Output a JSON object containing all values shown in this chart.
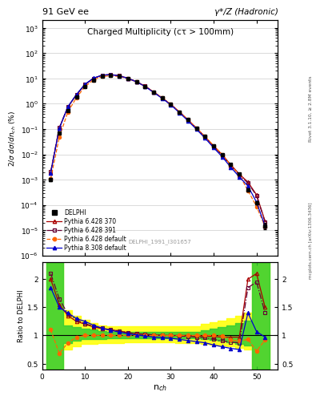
{
  "title_top": "91 GeV ee",
  "title_right": "γ*/Z (Hadronic)",
  "plot_title": "Charged Multiplicity",
  "plot_subtitle": "(cτ > 100mm)",
  "ylabel_main": "2/σ dσ/dn$_{ch}$ (%)",
  "ylabel_ratio": "Ratio to DELPHI",
  "xlabel": "n$_{ch}$",
  "watermark": "DELPHI_1991_I301657",
  "right_label1": "Rivet 3.1.10, ≥ 2.8M events",
  "right_label2": "mcplots.cern.ch [arXiv:1306.3436]",
  "nch": [
    2,
    4,
    6,
    8,
    10,
    12,
    14,
    16,
    18,
    20,
    22,
    24,
    26,
    28,
    30,
    32,
    34,
    36,
    38,
    40,
    42,
    44,
    46,
    48,
    50,
    52
  ],
  "delphi_y": [
    0.001,
    0.07,
    0.55,
    1.8,
    4.8,
    8.8,
    12.0,
    13.0,
    12.0,
    9.8,
    7.3,
    4.9,
    2.9,
    1.7,
    0.95,
    0.48,
    0.235,
    0.11,
    0.05,
    0.022,
    0.01,
    0.004,
    0.0017,
    0.0004,
    0.00012,
    1.5e-05
  ],
  "delphi_yerr": [
    0.00015,
    0.007,
    0.04,
    0.12,
    0.25,
    0.4,
    0.5,
    0.5,
    0.45,
    0.35,
    0.27,
    0.18,
    0.11,
    0.065,
    0.038,
    0.019,
    0.009,
    0.0045,
    0.0025,
    0.0013,
    0.0006,
    0.00025,
    0.0001,
    4e-05,
    1.8e-05,
    4e-06
  ],
  "ratio_py6_370": [
    2.0,
    1.55,
    1.35,
    1.25,
    1.2,
    1.15,
    1.12,
    1.1,
    1.08,
    1.05,
    1.03,
    1.02,
    1.01,
    1.0,
    1.0,
    1.0,
    1.0,
    0.99,
    0.99,
    0.98,
    0.97,
    0.97,
    0.97,
    2.0,
    2.1,
    1.5
  ],
  "ratio_py6_391": [
    2.1,
    1.65,
    1.38,
    1.28,
    1.21,
    1.16,
    1.13,
    1.1,
    1.08,
    1.05,
    1.03,
    1.02,
    1.01,
    1.0,
    1.0,
    0.99,
    0.98,
    0.97,
    0.96,
    0.93,
    0.9,
    0.88,
    0.87,
    1.85,
    1.95,
    1.4
  ],
  "ratio_py6_def": [
    1.1,
    0.68,
    0.87,
    0.97,
    1.0,
    1.0,
    1.0,
    1.0,
    1.0,
    1.0,
    1.0,
    1.0,
    1.0,
    1.0,
    1.0,
    1.0,
    1.0,
    1.0,
    1.0,
    1.0,
    0.99,
    0.92,
    0.9,
    0.93,
    0.72,
    0.92
  ],
  "ratio_py8_def": [
    1.85,
    1.5,
    1.4,
    1.3,
    1.25,
    1.18,
    1.13,
    1.09,
    1.06,
    1.03,
    1.01,
    0.99,
    0.97,
    0.96,
    0.95,
    0.93,
    0.91,
    0.89,
    0.87,
    0.83,
    0.8,
    0.77,
    0.75,
    1.4,
    1.07,
    0.97
  ],
  "band_yellow_lo": [
    0.4,
    0.4,
    0.75,
    0.8,
    0.85,
    0.85,
    0.87,
    0.87,
    0.87,
    0.88,
    0.88,
    0.88,
    0.88,
    0.88,
    0.88,
    0.87,
    0.87,
    0.87,
    0.85,
    0.83,
    0.82,
    0.8,
    0.78,
    0.75,
    0.4,
    0.4
  ],
  "band_yellow_hi": [
    2.3,
    2.3,
    1.45,
    1.35,
    1.28,
    1.22,
    1.18,
    1.17,
    1.17,
    1.17,
    1.17,
    1.16,
    1.16,
    1.16,
    1.16,
    1.17,
    1.17,
    1.17,
    1.2,
    1.24,
    1.27,
    1.3,
    1.35,
    1.4,
    2.3,
    2.3
  ],
  "band_green_lo": [
    0.4,
    0.4,
    0.87,
    0.9,
    0.93,
    0.93,
    0.94,
    0.95,
    0.95,
    0.95,
    0.95,
    0.95,
    0.95,
    0.95,
    0.95,
    0.95,
    0.95,
    0.95,
    0.94,
    0.92,
    0.9,
    0.88,
    0.85,
    0.82,
    0.4,
    0.4
  ],
  "band_green_hi": [
    2.3,
    2.3,
    1.18,
    1.15,
    1.12,
    1.1,
    1.08,
    1.07,
    1.07,
    1.07,
    1.07,
    1.06,
    1.06,
    1.06,
    1.06,
    1.07,
    1.07,
    1.07,
    1.09,
    1.12,
    1.15,
    1.18,
    1.22,
    1.26,
    2.3,
    2.3
  ],
  "color_delphi": "#000000",
  "color_py6_370": "#aa0000",
  "color_py6_391": "#660033",
  "color_py6_def": "#ff6600",
  "color_py8_def": "#0000cc",
  "ylim_main": [
    1e-06,
    2000.0
  ],
  "ylim_ratio": [
    0.4,
    2.3
  ],
  "xlim": [
    0,
    55
  ]
}
